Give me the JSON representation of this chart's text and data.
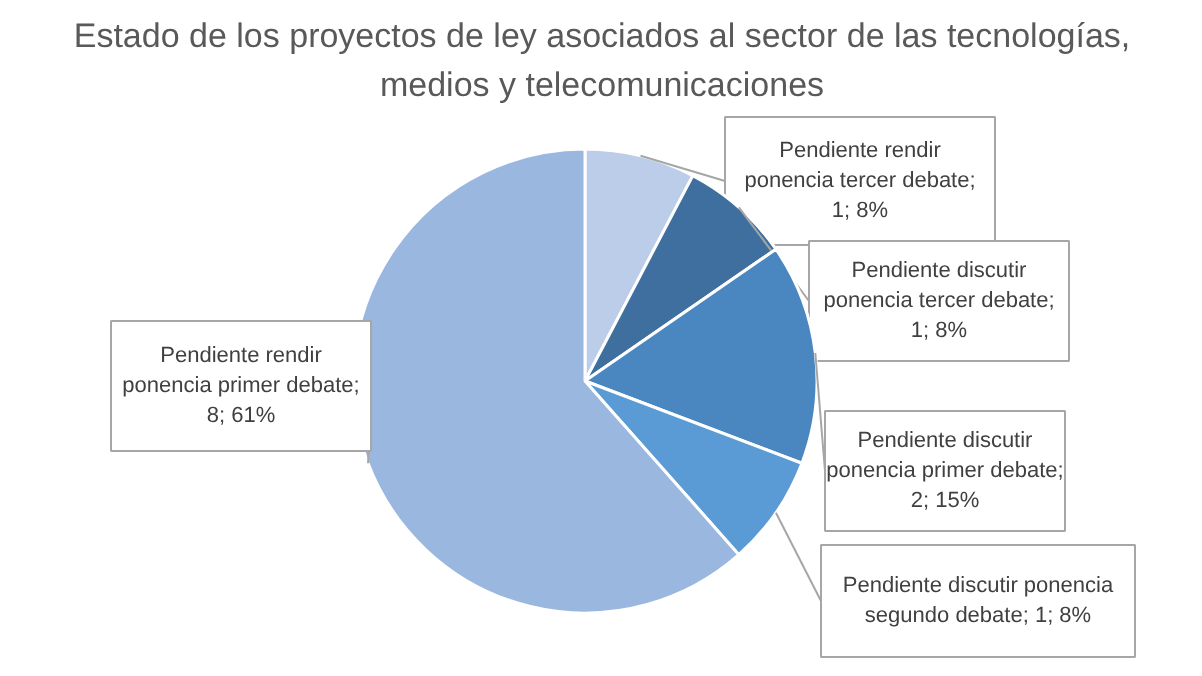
{
  "chart_data": {
    "type": "pie",
    "title": "Estado de los proyectos de ley asociados al sector de las tecnologías,\nmedios y telecomunicaciones",
    "categories": [
      "Pendiente rendir ponencia tercer debate",
      "Pendiente discutir ponencia tercer debate",
      "Pendiente discutir ponencia primer debate",
      "Pendiente discutir ponencia segundo debate",
      "Pendiente rendir ponencia primer debate"
    ],
    "values": [
      1,
      1,
      2,
      1,
      8
    ],
    "colors": [
      "#bccde9",
      "#3f6f9f",
      "#4a86c0",
      "#5b9bd5",
      "#9ab7e0"
    ],
    "value_labels": [
      "; 1; 8%",
      "; 1; 8%",
      "; 2; 15%",
      "; 1; 8%",
      "; 8; 61%"
    ]
  }
}
